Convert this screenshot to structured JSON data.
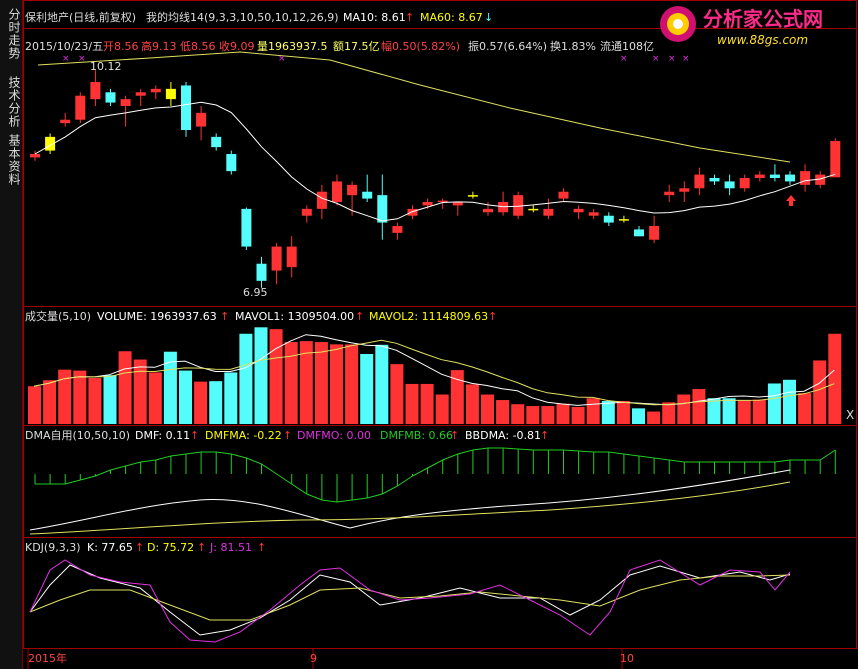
{
  "sidebar": {
    "tabs": [
      {
        "label": "分时走势"
      },
      {
        "label": "技术分析"
      },
      {
        "label": "基本资料"
      }
    ]
  },
  "header": {
    "stock": "保利地产(日线,前复权)",
    "indicator": "我的均线14(9,3,3,10,50,10,12,26,9)",
    "ma10_label": "MA10: 8.61",
    "ma60_label": "MA60: 8.67",
    "date": "2015/10/23/五",
    "open": "开8.56",
    "high": "高9.13",
    "low": "低8.56",
    "close": "收9.09",
    "vol": "量1963937.5",
    "amount": "额17.5亿",
    "change": "幅0.50(5.82%)",
    "amplitude": "振0.57(6.64%)",
    "turnover": "换1.83%",
    "float": "流通108亿"
  },
  "price_chart": {
    "high_label": "10.12",
    "low_label": "6.95"
  },
  "volume_panel": {
    "title": "成交量(5,10)",
    "volume": "VOLUME: 1963937.63",
    "mavol1": "MAVOL1: 1309504.00",
    "mavol2": "MAVOL2: 1114809.63"
  },
  "dma_panel": {
    "title": "DMA自用(10,50,10)",
    "dmf": "DMF: 0.11",
    "dmfma": "DMFMA: -0.22",
    "dmfmo": "DMFMO: 0.00",
    "dmfmb": "DMFMB: 0.66",
    "bbdma": "BBDMA: -0.81"
  },
  "kdj_panel": {
    "title": "KDJ(9,3,3)",
    "k": "K: 77.65",
    "d": "D: 75.72",
    "j": "J: 81.51"
  },
  "axis": {
    "labels": [
      "2015年",
      "9",
      "10"
    ]
  },
  "logo": {
    "text": "分析家公式网",
    "url": "www.88gs.com"
  },
  "close_button": "X",
  "colors": {
    "up": "#ff3333",
    "down": "#54fcfc",
    "flat": "#ffff00",
    "ma_line": "#ffffff",
    "ma_line2": "#e0e060",
    "kdj_j": "#e030e0",
    "dma_green": "#22cc22",
    "panel_border": "#a00000"
  },
  "chart_data": {
    "type": "candlestick",
    "candles": [
      {
        "o": 8.85,
        "h": 8.95,
        "l": 8.8,
        "c": 8.9
      },
      {
        "o": 8.95,
        "h": 9.2,
        "l": 8.9,
        "c": 9.15
      },
      {
        "o": 9.35,
        "h": 9.5,
        "l": 9.3,
        "c": 9.4
      },
      {
        "o": 9.4,
        "h": 9.8,
        "l": 9.35,
        "c": 9.75
      },
      {
        "o": 9.7,
        "h": 10.12,
        "l": 9.6,
        "c": 9.95
      },
      {
        "o": 9.8,
        "h": 9.85,
        "l": 9.6,
        "c": 9.65
      },
      {
        "o": 9.6,
        "h": 9.75,
        "l": 9.3,
        "c": 9.7
      },
      {
        "o": 9.75,
        "h": 9.85,
        "l": 9.6,
        "c": 9.8
      },
      {
        "o": 9.8,
        "h": 9.9,
        "l": 9.7,
        "c": 9.85
      },
      {
        "o": 9.85,
        "h": 9.95,
        "l": 9.6,
        "c": 9.7
      },
      {
        "o": 9.9,
        "h": 9.95,
        "l": 9.15,
        "c": 9.25
      },
      {
        "o": 9.3,
        "h": 9.6,
        "l": 9.1,
        "c": 9.5
      },
      {
        "o": 9.15,
        "h": 9.2,
        "l": 8.95,
        "c": 9.0
      },
      {
        "o": 8.9,
        "h": 8.95,
        "l": 8.6,
        "c": 8.65
      },
      {
        "o": 8.1,
        "h": 8.12,
        "l": 7.5,
        "c": 7.55
      },
      {
        "o": 7.3,
        "h": 7.4,
        "l": 6.95,
        "c": 7.05
      },
      {
        "o": 7.2,
        "h": 7.6,
        "l": 7.0,
        "c": 7.55
      },
      {
        "o": 7.25,
        "h": 7.7,
        "l": 7.1,
        "c": 7.55
      },
      {
        "o": 8.0,
        "h": 8.15,
        "l": 7.9,
        "c": 8.1
      },
      {
        "o": 8.1,
        "h": 8.45,
        "l": 7.95,
        "c": 8.35
      },
      {
        "o": 8.2,
        "h": 8.6,
        "l": 8.15,
        "c": 8.5
      },
      {
        "o": 8.3,
        "h": 8.5,
        "l": 8.0,
        "c": 8.45
      },
      {
        "o": 8.35,
        "h": 8.6,
        "l": 8.2,
        "c": 8.25
      },
      {
        "o": 8.3,
        "h": 8.6,
        "l": 7.65,
        "c": 7.9
      },
      {
        "o": 7.75,
        "h": 7.9,
        "l": 7.65,
        "c": 7.85
      },
      {
        "o": 8.0,
        "h": 8.15,
        "l": 7.95,
        "c": 8.1
      },
      {
        "o": 8.15,
        "h": 8.25,
        "l": 8.1,
        "c": 8.2
      },
      {
        "o": 8.2,
        "h": 8.25,
        "l": 8.1,
        "c": 8.22
      },
      {
        "o": 8.15,
        "h": 8.2,
        "l": 8.0,
        "c": 8.2
      },
      {
        "o": 8.28,
        "h": 8.35,
        "l": 8.25,
        "c": 8.3
      },
      {
        "o": 8.05,
        "h": 8.2,
        "l": 8.0,
        "c": 8.1
      },
      {
        "o": 8.05,
        "h": 8.35,
        "l": 8.0,
        "c": 8.2
      },
      {
        "o": 8.0,
        "h": 8.35,
        "l": 7.95,
        "c": 8.3
      },
      {
        "o": 8.1,
        "h": 8.15,
        "l": 8.05,
        "c": 8.1
      },
      {
        "o": 8.0,
        "h": 8.25,
        "l": 7.95,
        "c": 8.1
      },
      {
        "o": 8.25,
        "h": 8.4,
        "l": 8.2,
        "c": 8.35
      },
      {
        "o": 8.05,
        "h": 8.15,
        "l": 7.95,
        "c": 8.1
      },
      {
        "o": 8.0,
        "h": 8.1,
        "l": 7.95,
        "c": 8.05
      },
      {
        "o": 8.0,
        "h": 8.05,
        "l": 7.85,
        "c": 7.9
      },
      {
        "o": 7.95,
        "h": 8.0,
        "l": 7.9,
        "c": 7.95
      },
      {
        "o": 7.8,
        "h": 7.85,
        "l": 7.7,
        "c": 7.7
      },
      {
        "o": 7.65,
        "h": 8.0,
        "l": 7.6,
        "c": 7.85
      },
      {
        "o": 8.3,
        "h": 8.45,
        "l": 8.2,
        "c": 8.35
      },
      {
        "o": 8.35,
        "h": 8.5,
        "l": 8.2,
        "c": 8.4
      },
      {
        "o": 8.4,
        "h": 8.7,
        "l": 8.3,
        "c": 8.6
      },
      {
        "o": 8.55,
        "h": 8.6,
        "l": 8.45,
        "c": 8.5
      },
      {
        "o": 8.5,
        "h": 8.6,
        "l": 8.3,
        "c": 8.4
      },
      {
        "o": 8.4,
        "h": 8.6,
        "l": 8.35,
        "c": 8.55
      },
      {
        "o": 8.55,
        "h": 8.65,
        "l": 8.5,
        "c": 8.6
      },
      {
        "o": 8.6,
        "h": 8.75,
        "l": 8.5,
        "c": 8.55
      },
      {
        "o": 8.6,
        "h": 8.65,
        "l": 8.45,
        "c": 8.5
      },
      {
        "o": 8.45,
        "h": 8.75,
        "l": 8.35,
        "c": 8.65
      },
      {
        "o": 8.45,
        "h": 8.65,
        "l": 8.4,
        "c": 8.6
      },
      {
        "o": 8.56,
        "h": 9.13,
        "l": 8.56,
        "c": 9.09
      }
    ],
    "volume_colors": "by candle",
    "volumes": [
      820,
      950,
      1180,
      1160,
      1000,
      1060,
      1580,
      1400,
      1120,
      1570,
      1160,
      920,
      930,
      1120,
      1960,
      2100,
      2060,
      1780,
      1800,
      1780,
      1730,
      1730,
      1520,
      1720,
      1300,
      870,
      870,
      640,
      1170,
      860,
      640,
      520,
      430,
      390,
      390,
      440,
      370,
      560,
      500,
      500,
      340,
      270,
      470,
      640,
      760,
      560,
      560,
      520,
      530,
      880,
      960,
      670,
      1380,
      1960
    ]
  }
}
